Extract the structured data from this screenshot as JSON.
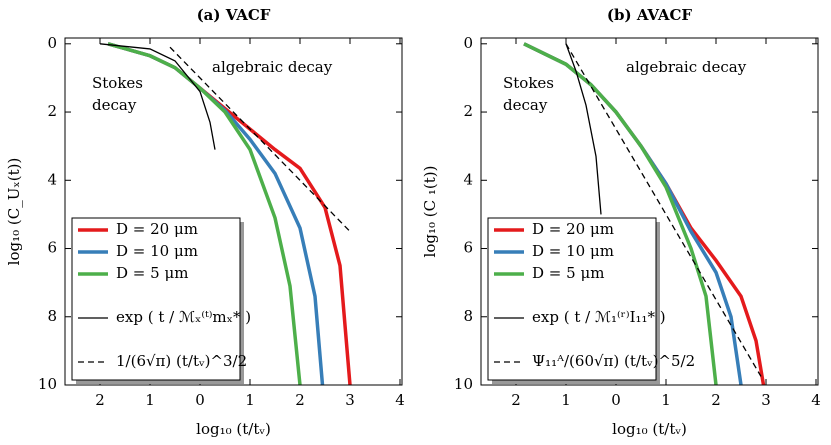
{
  "chart_data": [
    {
      "type": "line",
      "title": "(a) VACF",
      "x_label": "log₁₀ (t/tᵥ)",
      "y_label": "log₁₀ (C_Uₓ(t))",
      "xlim": [
        -2.7,
        4.04
      ],
      "ylim": [
        -10,
        0.17
      ],
      "xticks": [
        {
          "value": -2,
          "label": "2"
        },
        {
          "value": -1,
          "label": "1"
        },
        0,
        1,
        2,
        3,
        4
      ],
      "yticks": [
        0,
        {
          "value": -2,
          "label": "2"
        },
        {
          "value": -4,
          "label": "4"
        },
        {
          "value": -6,
          "label": "6"
        },
        {
          "value": -8,
          "label": "8"
        },
        {
          "value": -10,
          "label": "10"
        }
      ],
      "annotations": [
        "Stokes",
        "decay",
        "algebraic decay"
      ],
      "legend": "lower left",
      "series": [
        {
          "name": "D = 20 μm",
          "color": "#e41a1c",
          "style": "solid",
          "x": [
            -1.84,
            -1,
            -0.5,
            0,
            0.5,
            1,
            1.5,
            2,
            2.5,
            2.8,
            3
          ],
          "values": [
            0,
            -0.35,
            -0.7,
            -1.3,
            -1.9,
            -2.5,
            -3.1,
            -3.65,
            -4.8,
            -6.5,
            -10
          ]
        },
        {
          "name": "D = 10 μm",
          "color": "#377eb8",
          "style": "solid",
          "x": [
            -1.84,
            -1,
            -0.5,
            0,
            0.5,
            1,
            1.5,
            2,
            2.3,
            2.45
          ],
          "values": [
            0,
            -0.35,
            -0.7,
            -1.3,
            -1.95,
            -2.8,
            -3.8,
            -5.4,
            -7.4,
            -10
          ]
        },
        {
          "name": "D = 5 μm",
          "color": "#4daf4a",
          "style": "solid",
          "x": [
            -1.84,
            -1,
            -0.5,
            0,
            0.5,
            1,
            1.5,
            1.8,
            2
          ],
          "values": [
            0,
            -0.35,
            -0.7,
            -1.3,
            -2.0,
            -3.1,
            -5.1,
            -7.1,
            -10
          ]
        },
        {
          "name": "exp ( t / ℳₓ⁽ᵗ⁾mₓ* )",
          "color": "#000000",
          "style": "solid",
          "x": [
            -2,
            -1,
            -0.5,
            0,
            0.2,
            0.3
          ],
          "values": [
            0,
            -0.15,
            -0.5,
            -1.4,
            -2.3,
            -3.1
          ]
        },
        {
          "name": "1/(6√π) (t/tᵥ)^3/2",
          "color": "#000000",
          "style": "dashed",
          "x": [
            -0.6,
            3
          ],
          "values": [
            -0.1,
            -5.5
          ]
        }
      ]
    },
    {
      "type": "line",
      "title": "(b) AVACF",
      "x_label": "log₁₀ (t/tᵥ)",
      "y_label": "log₁₀ (C ₁(t))",
      "xlim": [
        -2.7,
        4.04
      ],
      "ylim": [
        -10,
        0.17
      ],
      "xticks": [
        {
          "value": -2,
          "label": "2"
        },
        {
          "value": -1,
          "label": "1"
        },
        0,
        1,
        2,
        3,
        4
      ],
      "yticks": [
        0,
        {
          "value": -2,
          "label": "2"
        },
        {
          "value": -4,
          "label": "4"
        },
        {
          "value": -6,
          "label": "6"
        },
        {
          "value": -8,
          "label": "8"
        },
        {
          "value": -10,
          "label": "10"
        }
      ],
      "annotations": [
        "Stokes",
        "decay",
        "algebraic decay"
      ],
      "legend": "lower left",
      "series": [
        {
          "name": "D = 20 μm",
          "color": "#e41a1c",
          "style": "solid",
          "x": [
            -1.84,
            -1,
            -0.5,
            0,
            0.5,
            1,
            1.5,
            2,
            2.5,
            2.8,
            2.95
          ],
          "values": [
            0,
            -0.6,
            -1.2,
            -2,
            -3,
            -4.1,
            -5.4,
            -6.35,
            -7.4,
            -8.7,
            -10
          ]
        },
        {
          "name": "D = 10 μm",
          "color": "#377eb8",
          "style": "solid",
          "x": [
            -1.84,
            -1,
            -0.5,
            0,
            0.5,
            1,
            1.5,
            2,
            2.3,
            2.5
          ],
          "values": [
            0,
            -0.6,
            -1.2,
            -2,
            -3,
            -4.1,
            -5.5,
            -6.7,
            -8,
            -10
          ]
        },
        {
          "name": "D = 5 μm",
          "color": "#4daf4a",
          "style": "solid",
          "x": [
            -1.84,
            -1,
            -0.5,
            0,
            0.5,
            1,
            1.5,
            1.8,
            2
          ],
          "values": [
            0,
            -0.6,
            -1.2,
            -2,
            -3,
            -4.2,
            -6,
            -7.4,
            -10
          ]
        },
        {
          "name": "exp ( t / ℳ₁⁽ʳ⁾I₁₁* )",
          "color": "#000000",
          "style": "solid",
          "x": [
            -1,
            -0.8,
            -0.6,
            -0.4,
            -0.3
          ],
          "values": [
            0,
            -0.8,
            -1.8,
            -3.3,
            -5
          ]
        },
        {
          "name": "Ψ₁₁ᴬ/(60√π) (t/tᵥ)^5/2",
          "color": "#000000",
          "style": "dashed",
          "x": [
            -1,
            2.9
          ],
          "values": [
            0,
            -9.75
          ]
        }
      ]
    }
  ]
}
